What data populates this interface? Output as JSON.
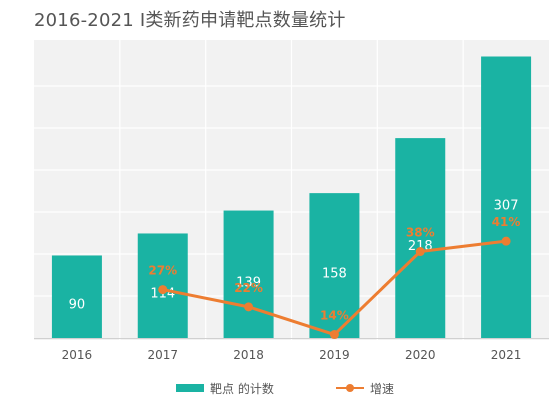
{
  "title": "2016-2021 I类新药申请靶点数量统计",
  "colors": {
    "bar": "#1ab3a3",
    "line": "#ed7d31",
    "panel": "#f2f2f2",
    "grid": "#ffffff",
    "axis_text": "#555555",
    "bar_label": "#ffffff"
  },
  "chart_data": {
    "type": "bar",
    "categories": [
      "2016",
      "2017",
      "2018",
      "2019",
      "2020",
      "2021"
    ],
    "series": [
      {
        "name": "靶点 的计数",
        "type": "bar",
        "values": [
          90,
          114,
          139,
          158,
          218,
          307
        ],
        "labels": [
          "90",
          "114",
          "139",
          "158",
          "218",
          "307"
        ]
      },
      {
        "name": "增速",
        "type": "line",
        "values": [
          null,
          27,
          22,
          14,
          38,
          41
        ],
        "labels": [
          "",
          "27%",
          "22%",
          "14%",
          "38%",
          "41%"
        ]
      }
    ],
    "grid": true,
    "legend": "bottom"
  }
}
